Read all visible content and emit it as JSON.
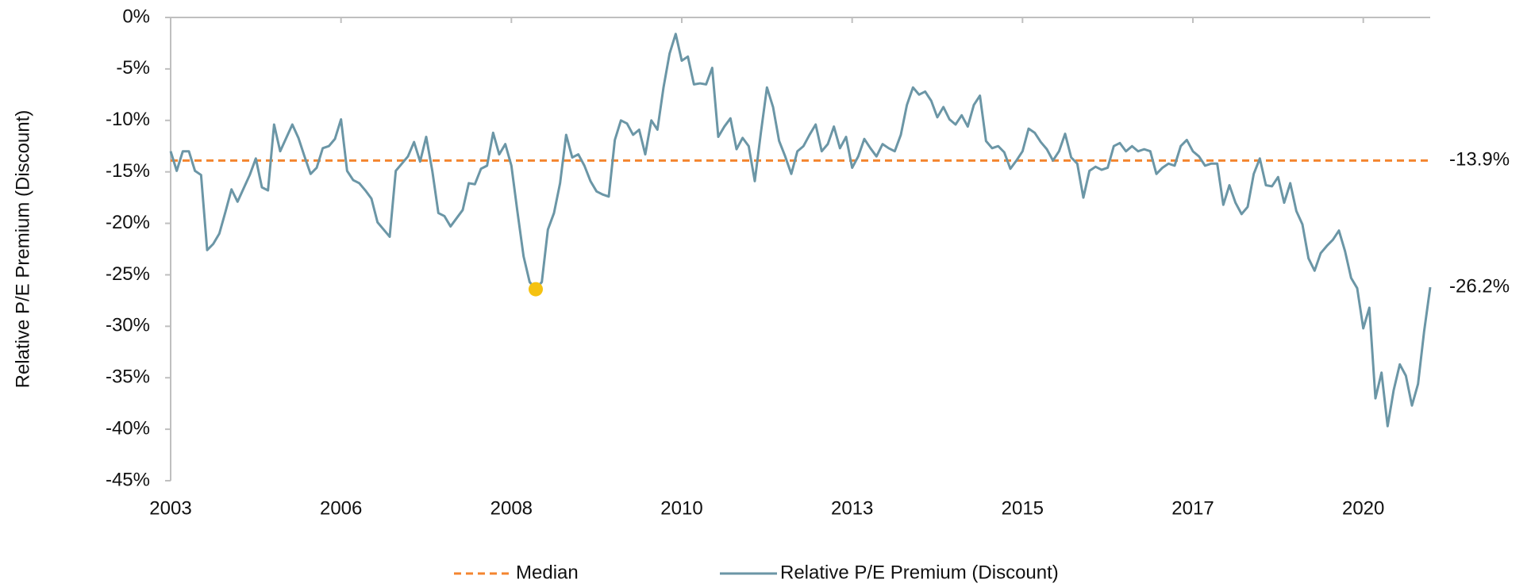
{
  "chart_data": {
    "type": "line",
    "y_axis_label": "Relative P/E Premium (Discount)",
    "categories": [
      "2003",
      null,
      null,
      null,
      null,
      null,
      null,
      null,
      null,
      null,
      null,
      null,
      null,
      null,
      null,
      null,
      null,
      null,
      null,
      null,
      null,
      null,
      null,
      null,
      null,
      null,
      null,
      null,
      "2006",
      null,
      null,
      null,
      null,
      null,
      null,
      null,
      null,
      null,
      null,
      null,
      null,
      null,
      null,
      null,
      null,
      null,
      null,
      null,
      null,
      null,
      null,
      null,
      null,
      null,
      null,
      null,
      "2008",
      null,
      null,
      null,
      null,
      null,
      null,
      null,
      null,
      null,
      null,
      null,
      null,
      null,
      null,
      null,
      null,
      null,
      null,
      null,
      null,
      null,
      null,
      null,
      null,
      null,
      null,
      null,
      "2010",
      null,
      null,
      null,
      null,
      null,
      null,
      null,
      null,
      null,
      null,
      null,
      null,
      null,
      null,
      null,
      null,
      null,
      null,
      null,
      null,
      null,
      null,
      null,
      null,
      null,
      null,
      null,
      "2013",
      null,
      null,
      null,
      null,
      null,
      null,
      null,
      null,
      null,
      null,
      null,
      null,
      null,
      null,
      null,
      null,
      null,
      null,
      null,
      null,
      null,
      null,
      null,
      null,
      null,
      null,
      null,
      "2015",
      null,
      null,
      null,
      null,
      null,
      null,
      null,
      null,
      null,
      null,
      null,
      null,
      null,
      null,
      null,
      null,
      null,
      null,
      null,
      null,
      null,
      null,
      null,
      null,
      null,
      null,
      null,
      "2017",
      null,
      null,
      null,
      null,
      null,
      null,
      null,
      null,
      null,
      null,
      null,
      null,
      null,
      null,
      null,
      null,
      null,
      null,
      null,
      null,
      null,
      null,
      null,
      null,
      null,
      null,
      null,
      "2020",
      null,
      null,
      null,
      null,
      null,
      null,
      null,
      null,
      null,
      null,
      null
    ],
    "series": [
      {
        "name": "Relative P/E Premium (Discount)",
        "color": "#6b96a6",
        "values": [
          -13.0,
          -14.9,
          -13.0,
          -13.0,
          -14.9,
          -15.3,
          -22.6,
          -22.0,
          -21.0,
          -18.9,
          -16.7,
          -17.9,
          -16.6,
          -15.3,
          -13.7,
          -16.5,
          -16.8,
          -10.4,
          -13.0,
          -11.7,
          -10.4,
          -11.7,
          -13.5,
          -15.2,
          -14.6,
          -12.7,
          -12.5,
          -11.8,
          -9.9,
          -14.9,
          -15.8,
          -16.1,
          -16.8,
          -17.6,
          -19.9,
          -20.6,
          -21.3,
          -14.9,
          -14.2,
          -13.5,
          -12.1,
          -14.0,
          -11.6,
          -14.9,
          -19.0,
          -19.3,
          -20.3,
          -19.5,
          -18.7,
          -16.1,
          -16.2,
          -14.7,
          -14.4,
          -11.2,
          -13.3,
          -12.3,
          -14.4,
          -18.9,
          -23.2,
          -25.7,
          -26.4,
          -25.7,
          -20.6,
          -19.0,
          -16.1,
          -11.4,
          -13.6,
          -13.3,
          -14.4,
          -15.9,
          -16.9,
          -17.2,
          -17.4,
          -11.9,
          -10.0,
          -10.3,
          -11.4,
          -10.9,
          -13.3,
          -10.0,
          -10.9,
          -6.8,
          -3.5,
          -1.6,
          -4.2,
          -3.8,
          -6.5,
          -6.4,
          -6.5,
          -4.9,
          -11.6,
          -10.6,
          -9.8,
          -12.8,
          -11.7,
          -12.5,
          -15.9,
          -11.2,
          -6.8,
          -8.7,
          -12.0,
          -13.5,
          -15.2,
          -13.0,
          -12.5,
          -11.4,
          -10.4,
          -13.0,
          -12.3,
          -10.6,
          -12.7,
          -11.6,
          -14.6,
          -13.5,
          -11.8,
          -12.7,
          -13.5,
          -12.3,
          -12.7,
          -13.0,
          -11.4,
          -8.5,
          -6.8,
          -7.5,
          -7.2,
          -8.1,
          -9.7,
          -8.7,
          -9.9,
          -10.4,
          -9.5,
          -10.6,
          -8.5,
          -7.6,
          -12.0,
          -12.7,
          -12.5,
          -13.1,
          -14.7,
          -13.9,
          -13.0,
          -10.8,
          -11.2,
          -12.1,
          -12.8,
          -13.9,
          -13.0,
          -11.3,
          -13.6,
          -14.2,
          -17.5,
          -14.9,
          -14.5,
          -14.8,
          -14.6,
          -12.5,
          -12.2,
          -13.0,
          -12.5,
          -13.0,
          -12.8,
          -13.0,
          -15.2,
          -14.6,
          -14.2,
          -14.4,
          -12.5,
          -11.9,
          -13.0,
          -13.5,
          -14.4,
          -14.2,
          -14.2,
          -18.2,
          -16.3,
          -18.0,
          -19.1,
          -18.4,
          -15.2,
          -13.7,
          -16.3,
          -16.4,
          -15.5,
          -18.0,
          -16.1,
          -18.8,
          -20.1,
          -23.4,
          -24.6,
          -22.9,
          -22.2,
          -21.6,
          -20.7,
          -22.7,
          -25.3,
          -26.3,
          -30.2,
          -28.2,
          -37.0,
          -34.5,
          -39.7,
          -36.2,
          -33.7,
          -34.8,
          -37.7,
          -35.6,
          -30.5,
          -26.2
        ],
        "end_label": "-26.2%",
        "highlight_point": 60,
        "highlight_color": "#f5c211"
      }
    ],
    "median": {
      "name": "Median",
      "value": -13.9,
      "label": "-13.9%",
      "color": "#f4852f"
    },
    "ylim": [
      -45,
      0
    ],
    "yticks": [
      {
        "value": 0,
        "label": "0%"
      },
      {
        "value": -5,
        "label": "-5%"
      },
      {
        "value": -10,
        "label": "-10%"
      },
      {
        "value": -15,
        "label": "-15%"
      },
      {
        "value": -20,
        "label": "-20%"
      },
      {
        "value": -25,
        "label": "-25%"
      },
      {
        "value": -30,
        "label": "-30%"
      },
      {
        "value": -35,
        "label": "-35%"
      },
      {
        "value": -40,
        "label": "-40%"
      },
      {
        "value": -45,
        "label": "-45%"
      }
    ],
    "grid": false
  }
}
